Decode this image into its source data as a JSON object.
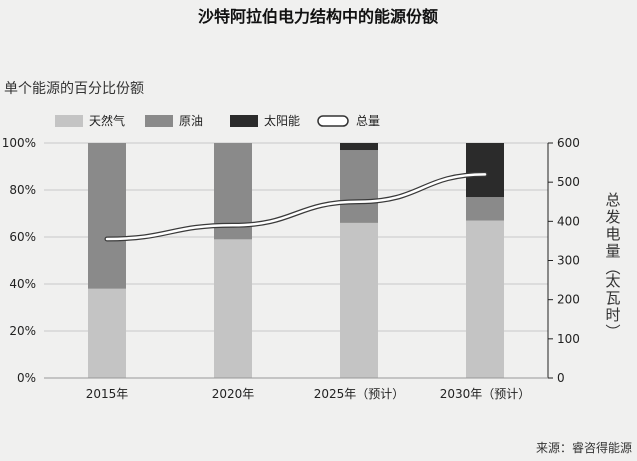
{
  "chart_data": {
    "type": "bar",
    "title": "沙特阿拉伯电力结构中的能源份额",
    "subtitle": "单个能源的百分比份额",
    "categories": [
      "2015年",
      "2020年",
      "2025年（预计）",
      "2030年（预计）"
    ],
    "series": [
      {
        "name": "天然气",
        "type": "stacked-bar",
        "values": [
          38,
          59,
          66,
          67
        ],
        "color": "#c4c4c4"
      },
      {
        "name": "原油",
        "type": "stacked-bar",
        "values": [
          62,
          41,
          31,
          10
        ],
        "color": "#8a8a8a"
      },
      {
        "name": "太阳能",
        "type": "stacked-bar",
        "values": [
          0,
          0,
          3,
          23
        ],
        "color": "#2b2b2b"
      },
      {
        "name": "总量",
        "type": "line",
        "axis": "right",
        "values": [
          355,
          390,
          450,
          520
        ],
        "color": "#ffffff"
      }
    ],
    "y_left": {
      "ticks": [
        "0%",
        "20%",
        "40%",
        "60%",
        "80%",
        "100%"
      ],
      "lim": [
        0,
        100
      ]
    },
    "y_right": {
      "label": "总发电量（太瓦时）",
      "ticks": [
        "0",
        "100",
        "200",
        "300",
        "400",
        "500",
        "600"
      ],
      "lim": [
        0,
        600
      ]
    },
    "grid": true,
    "legend": "top-left",
    "source": "来源：睿咨得能源"
  }
}
